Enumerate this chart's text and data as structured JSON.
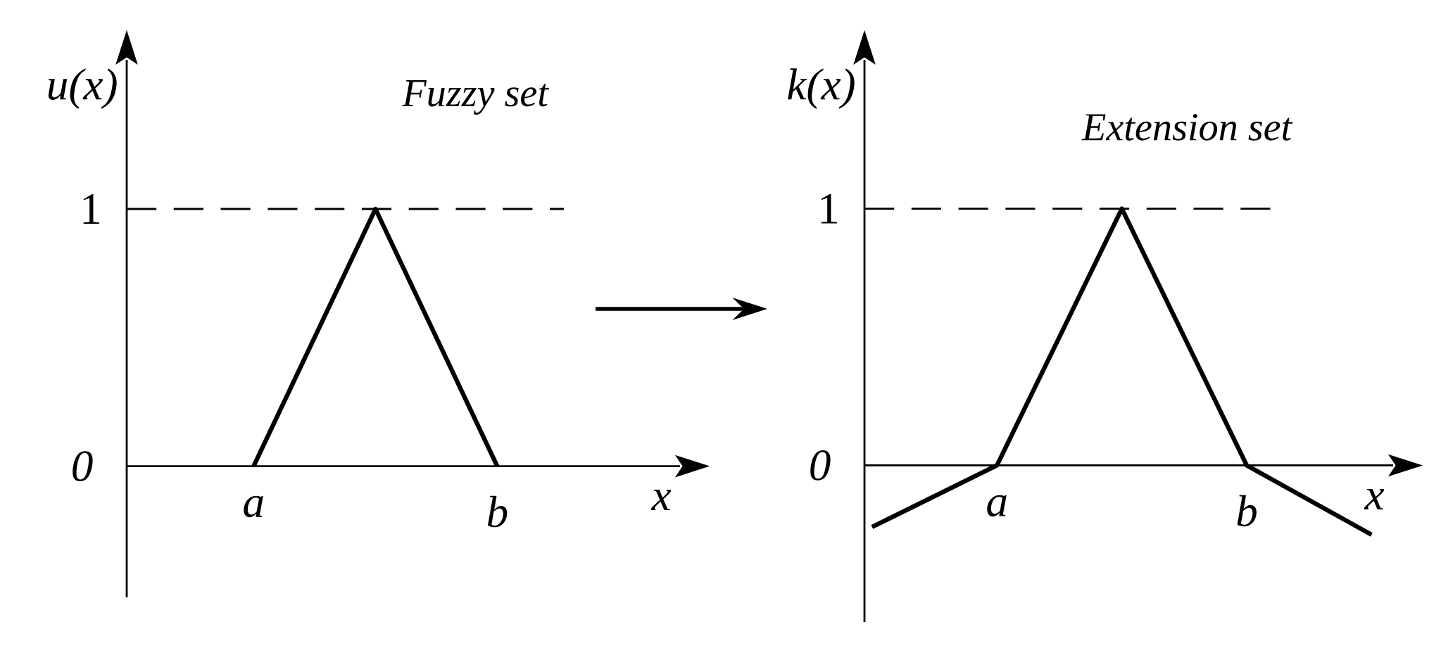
{
  "chart_data": [
    {
      "type": "line",
      "title": "Fuzzy set",
      "xlabel": "x",
      "ylabel": "u(x)",
      "ylim": [
        -0.51,
        1.58
      ],
      "yticks": [
        0,
        1
      ],
      "categories": [
        "a",
        null,
        "b"
      ],
      "series": [
        {
          "color": "#000000",
          "values": [
            0,
            1,
            0
          ]
        }
      ],
      "ref_lines": [
        {
          "axis": "y",
          "value": 1,
          "line_style": "dashed"
        }
      ],
      "marker": "none",
      "line_style": "solid"
    },
    {
      "type": "line",
      "title": "Extension set",
      "xlabel": "x",
      "ylabel": "k(x)",
      "ylim": [
        -0.61,
        1.58
      ],
      "yticks": [
        0,
        1
      ],
      "categories": [
        null,
        "a",
        null,
        "b",
        null
      ],
      "series": [
        {
          "color": "#000000",
          "values": [
            -0.24,
            0,
            1,
            0,
            -0.27
          ]
        }
      ],
      "ref_lines": [
        {
          "axis": "y",
          "value": 1,
          "line_style": "dashed"
        }
      ],
      "marker": "none",
      "line_style": "solid"
    }
  ]
}
